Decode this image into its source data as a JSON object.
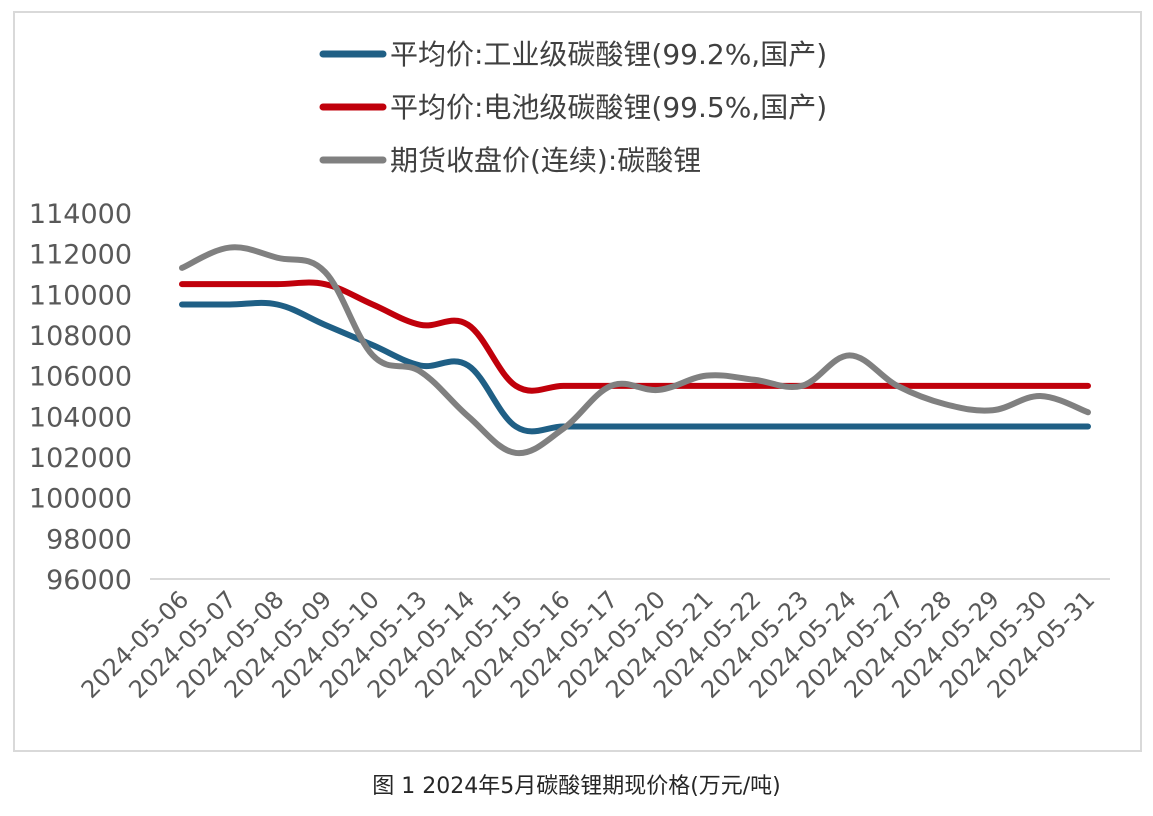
{
  "caption": "图 1 2024年5月碳酸锂期现价格(万元/吨)",
  "chart_data": {
    "type": "line",
    "title": "",
    "xlabel": "",
    "ylabel": "",
    "ylim": [
      96000,
      114000
    ],
    "yticks": [
      96000,
      98000,
      100000,
      102000,
      104000,
      106000,
      108000,
      110000,
      112000,
      114000
    ],
    "grid": false,
    "legend_position": "top",
    "categories": [
      "2024-05-06",
      "2024-05-07",
      "2024-05-08",
      "2024-05-09",
      "2024-05-10",
      "2024-05-13",
      "2024-05-14",
      "2024-05-15",
      "2024-05-16",
      "2024-05-17",
      "2024-05-20",
      "2024-05-21",
      "2024-05-22",
      "2024-05-23",
      "2024-05-24",
      "2024-05-27",
      "2024-05-28",
      "2024-05-29",
      "2024-05-30",
      "2024-05-31"
    ],
    "series": [
      {
        "name": "平均价:工业级碳酸锂(99.2%,国产)",
        "color": "#1f5f85",
        "values": [
          109500,
          109500,
          109500,
          108500,
          107500,
          106500,
          106500,
          103500,
          103500,
          103500,
          103500,
          103500,
          103500,
          103500,
          103500,
          103500,
          103500,
          103500,
          103500,
          103500
        ]
      },
      {
        "name": "平均价:电池级碳酸锂(99.5%,国产)",
        "color": "#c0000b",
        "values": [
          110500,
          110500,
          110500,
          110500,
          109500,
          108500,
          108500,
          105500,
          105500,
          105500,
          105500,
          105500,
          105500,
          105500,
          105500,
          105500,
          105500,
          105500,
          105500,
          105500
        ]
      },
      {
        "name": "期货收盘价(连续):碳酸锂",
        "color": "#808080",
        "values": [
          111300,
          112300,
          111800,
          111100,
          107000,
          106200,
          104000,
          102200,
          103400,
          105500,
          105300,
          106000,
          105800,
          105500,
          107000,
          105500,
          104600,
          104300,
          105000,
          104200
        ]
      }
    ]
  }
}
